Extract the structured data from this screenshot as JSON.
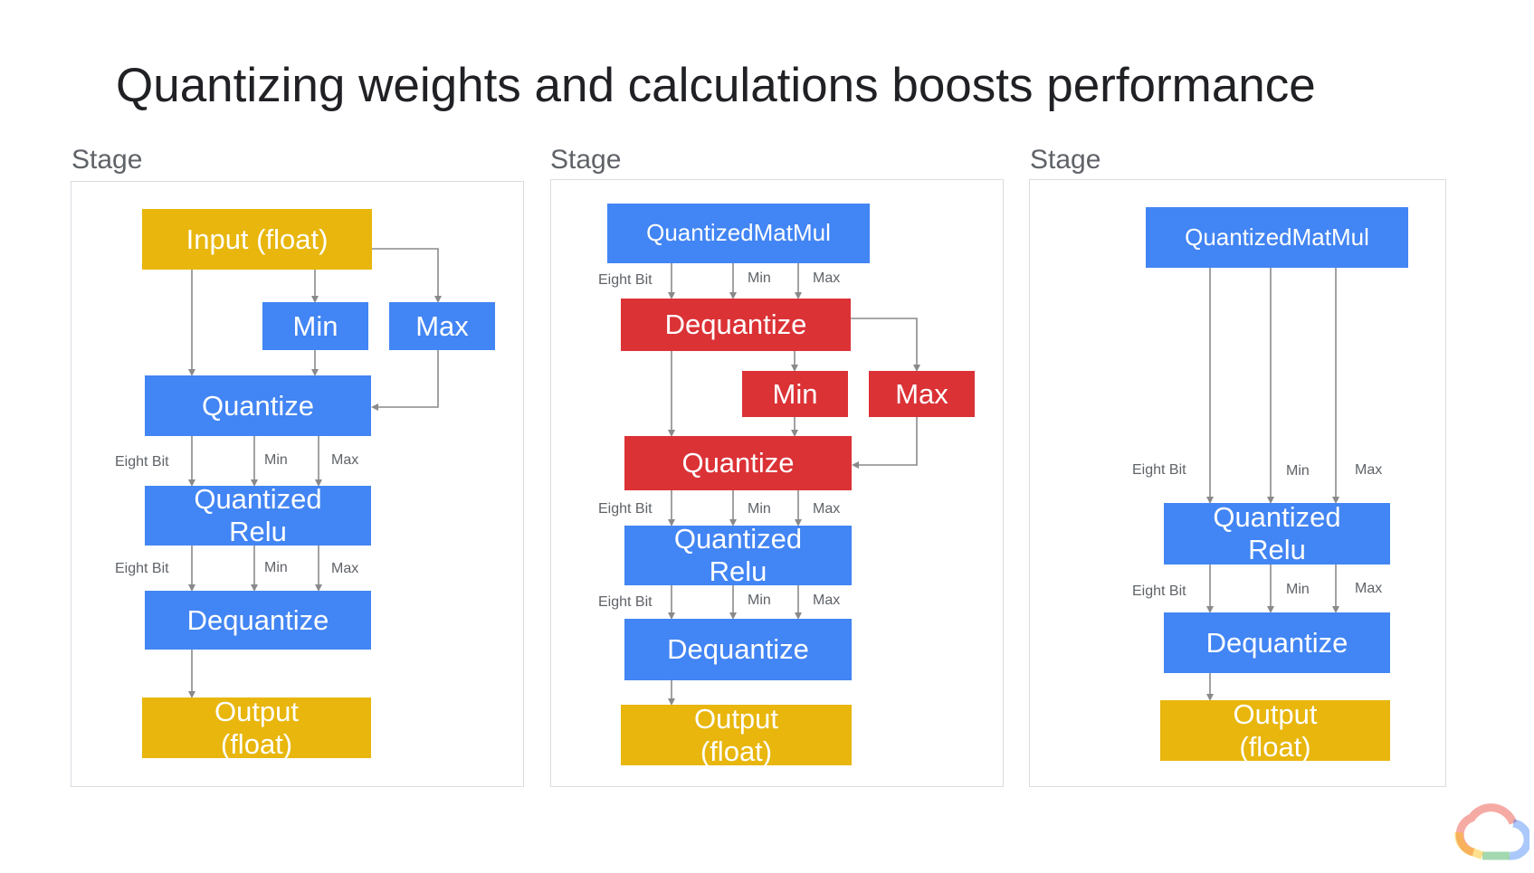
{
  "title": "Quantizing weights and calculations boosts performance",
  "colors": {
    "blue": "#4285f4",
    "red": "#db3236",
    "yellow": "#e8b60c"
  },
  "stage1": {
    "label": "Stage",
    "input_line1": "Input (float)",
    "min": "Min",
    "max": "Max",
    "quantize": "Quantize",
    "relu_line1": "Quantized",
    "relu_line2": "Relu",
    "dequantize": "Dequantize",
    "output_line1": "Output",
    "output_line2": "(float)",
    "edge_labels": {
      "eight_bit_1": "Eight Bit",
      "min_1": "Min",
      "max_1": "Max",
      "eight_bit_2": "Eight Bit",
      "min_2": "Min",
      "max_2": "Max"
    }
  },
  "stage2": {
    "label": "Stage",
    "matmul": "QuantizedMatMul",
    "dequantize_red": "Dequantize",
    "min": "Min",
    "max": "Max",
    "quantize_red": "Quantize",
    "relu_line1": "Quantized",
    "relu_line2": "Relu",
    "dequantize": "Dequantize",
    "output_line1": "Output",
    "output_line2": "(float)",
    "edge_labels": {
      "eight_bit_1": "Eight Bit",
      "min_1": "Min",
      "max_1": "Max",
      "eight_bit_2": "Eight Bit",
      "min_2": "Min",
      "max_2": "Max",
      "eight_bit_3": "Eight Bit",
      "min_3": "Min",
      "max_3": "Max"
    }
  },
  "stage3": {
    "label": "Stage",
    "matmul": "QuantizedMatMul",
    "relu_line1": "Quantized",
    "relu_line2": "Relu",
    "dequantize": "Dequantize",
    "output_line1": "Output",
    "output_line2": "(float)",
    "edge_labels": {
      "eight_bit_1": "Eight Bit",
      "min_1": "Min",
      "max_1": "Max",
      "eight_bit_2": "Eight Bit",
      "min_2": "Min",
      "max_2": "Max"
    }
  },
  "logo_icon": "google-cloud-icon"
}
